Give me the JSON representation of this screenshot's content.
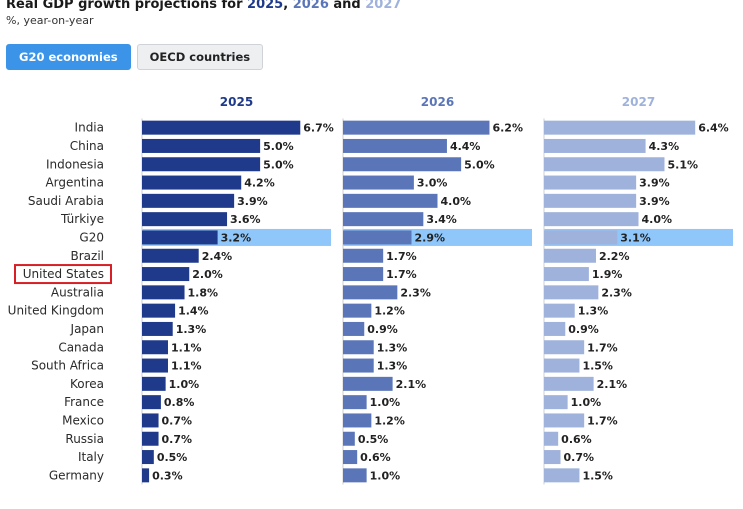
{
  "title": {
    "prefix": "Real GDP growth projections for ",
    "y1": "2025",
    "sep1": ", ",
    "y2": "2026",
    "sep2": " and ",
    "y3": "2027"
  },
  "subtitle": "%, year-on-year",
  "tabs": [
    {
      "label": "G20 economies",
      "active": true
    },
    {
      "label": "OECD countries",
      "active": false
    }
  ],
  "colors": {
    "s2025": "#1f3a8a",
    "s2026": "#5b76b8",
    "s2027": "#9fb2dc",
    "highlight": "#8fc7fb",
    "title2025": "#1f3a8a",
    "title2026": "#5b76b8",
    "title2027": "#9fb2dc",
    "marker": "#d81f26"
  },
  "chart_data": {
    "type": "bar",
    "orientation": "horizontal",
    "highlight_category": "G20",
    "marked_category": "United States",
    "xlim": [
      0,
      8
    ],
    "categories": [
      "India",
      "China",
      "Indonesia",
      "Argentina",
      "Saudi Arabia",
      "Türkiye",
      "G20",
      "Brazil",
      "United States",
      "Australia",
      "United Kingdom",
      "Japan",
      "Canada",
      "South Africa",
      "Korea",
      "France",
      "Mexico",
      "Russia",
      "Italy",
      "Germany"
    ],
    "series": [
      {
        "name": "2025",
        "values": [
          6.7,
          5.0,
          5.0,
          4.2,
          3.9,
          3.6,
          3.2,
          2.4,
          2.0,
          1.8,
          1.4,
          1.3,
          1.1,
          1.1,
          1.0,
          0.8,
          0.7,
          0.7,
          0.5,
          0.3
        ]
      },
      {
        "name": "2026",
        "values": [
          6.2,
          4.4,
          5.0,
          3.0,
          4.0,
          3.4,
          2.9,
          1.7,
          1.7,
          2.3,
          1.2,
          0.9,
          1.3,
          1.3,
          2.1,
          1.0,
          1.2,
          0.5,
          0.6,
          1.0
        ]
      },
      {
        "name": "2027",
        "values": [
          6.4,
          4.3,
          5.1,
          3.9,
          3.9,
          4.0,
          3.1,
          2.2,
          1.9,
          2.3,
          1.3,
          0.9,
          1.7,
          1.5,
          2.1,
          1.0,
          1.7,
          0.6,
          0.7,
          1.5
        ]
      }
    ]
  }
}
